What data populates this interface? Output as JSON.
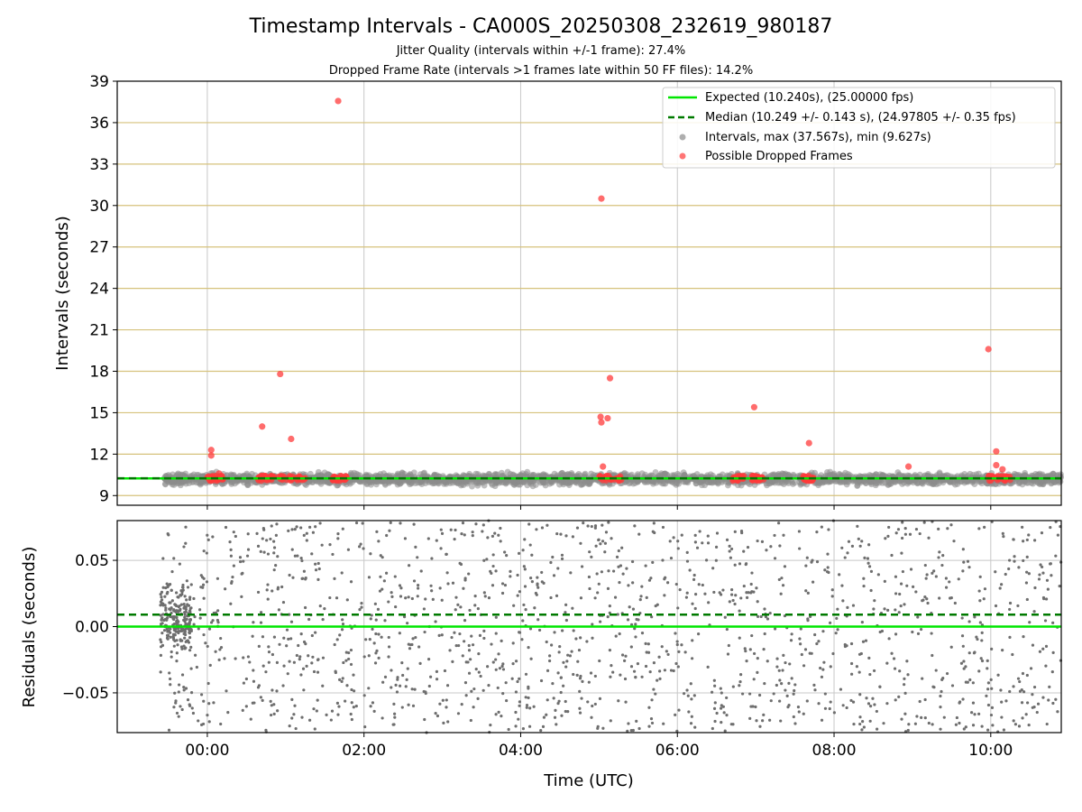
{
  "chart_data": [
    {
      "type": "scatter",
      "title": "Timestamp Intervals - CA000S_20250308_232619_980187",
      "subtitle_1": "Jitter Quality (intervals within +/-1 frame): 27.4%",
      "subtitle_2": "Dropped Frame Rate (intervals >1 frames late within 50 FF files): 14.2%",
      "xlabel": "",
      "ylabel": "Intervals (seconds)",
      "xlim_hours": [
        -1.15,
        10.9
      ],
      "ylim": [
        8.3,
        39
      ],
      "yticks": [
        "9",
        "12",
        "15",
        "18",
        "21",
        "24",
        "27",
        "30",
        "33",
        "36",
        "39"
      ],
      "ytick_values": [
        9,
        12,
        15,
        18,
        21,
        24,
        27,
        30,
        33,
        36,
        39
      ],
      "xtick_values_hours": [
        0,
        2,
        4,
        6,
        8,
        10
      ],
      "grid": true,
      "legend_position": "top-right",
      "expected_interval": 10.24,
      "median_interval": 10.249,
      "legend": [
        {
          "label": "Expected (10.240s), (25.00000 fps)",
          "color": "#00e600",
          "style": "solid-line"
        },
        {
          "label": "Median (10.249 +/- 0.143 s), (24.97805 +/- 0.35 fps)",
          "color": "#007a00",
          "style": "dashed-line"
        },
        {
          "label": "Intervals, max (37.567s), min (9.627s)",
          "color": "#8c8c8c",
          "style": "dot"
        },
        {
          "label": "Possible Dropped Frames",
          "color": "#ff3b3b",
          "style": "dot"
        }
      ],
      "interval_band": {
        "x_range_hours": [
          -0.55,
          10.9
        ],
        "center": 10.2,
        "spread": 0.35
      },
      "dropped_clusters_hours": [
        [
          0.0,
          0.2
        ],
        [
          0.65,
          0.85
        ],
        [
          0.9,
          1.25
        ],
        [
          1.6,
          1.8
        ],
        [
          5.0,
          5.3
        ],
        [
          6.7,
          6.85
        ],
        [
          6.95,
          7.1
        ],
        [
          7.6,
          7.75
        ],
        [
          9.95,
          10.25
        ]
      ],
      "dropped_outliers": [
        {
          "x": 0.05,
          "y": 12.3
        },
        {
          "x": 0.05,
          "y": 11.9
        },
        {
          "x": 0.15,
          "y": 10.6
        },
        {
          "x": 0.7,
          "y": 14.0
        },
        {
          "x": 0.93,
          "y": 17.8
        },
        {
          "x": 1.07,
          "y": 13.1
        },
        {
          "x": 1.67,
          "y": 37.567
        },
        {
          "x": 5.03,
          "y": 30.5
        },
        {
          "x": 5.02,
          "y": 14.7
        },
        {
          "x": 5.03,
          "y": 14.3
        },
        {
          "x": 5.11,
          "y": 14.6
        },
        {
          "x": 5.14,
          "y": 17.5
        },
        {
          "x": 5.05,
          "y": 11.1
        },
        {
          "x": 6.98,
          "y": 15.4
        },
        {
          "x": 7.68,
          "y": 12.8
        },
        {
          "x": 8.95,
          "y": 11.1
        },
        {
          "x": 9.97,
          "y": 19.6
        },
        {
          "x": 10.07,
          "y": 12.2
        },
        {
          "x": 10.07,
          "y": 11.2
        },
        {
          "x": 10.15,
          "y": 10.9
        }
      ],
      "colors": {
        "interval": "#8c8c8c",
        "dropped": "#ff3b3b",
        "expected": "#00e600",
        "median": "#007a00",
        "hgrid": "#d6c27c",
        "vgrid": "#c8c8c8"
      }
    },
    {
      "type": "scatter",
      "xlabel": "Time (UTC)",
      "ylabel": "Residuals (seconds)",
      "xlim_hours": [
        -1.15,
        10.9
      ],
      "ylim": [
        -0.08,
        0.08
      ],
      "yticks": [
        "0.05",
        "0.00",
        "−0.05"
      ],
      "ytick_values": [
        0.05,
        0.0,
        -0.05
      ],
      "xticks": [
        "00:00",
        "02:00",
        "04:00",
        "06:00",
        "08:00",
        "10:00"
      ],
      "xtick_values_hours": [
        0,
        2,
        4,
        6,
        8,
        10
      ],
      "grid": true,
      "expected_residual": 0.0,
      "median_residual": 0.009,
      "residual_points": {
        "x_range_hours": [
          -0.6,
          10.9
        ],
        "count": 1500,
        "dense_start_range_hours": [
          -0.6,
          -0.2
        ],
        "dense_start_spread": 0.03
      },
      "colors": {
        "points": "#6e6e6e",
        "expected": "#00e600",
        "median": "#007a00",
        "grid": "#c8c8c8"
      }
    }
  ]
}
